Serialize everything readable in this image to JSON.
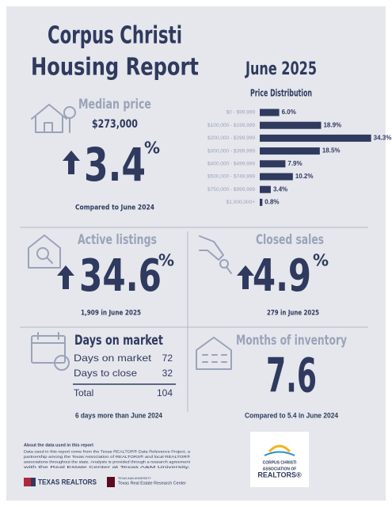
{
  "header": {
    "title_line1": "Corpus Christi",
    "title_line2": "Housing Report",
    "period": "June 2025"
  },
  "price_distribution": {
    "title": "Price Distribution",
    "categories": [
      "$0 - $99,999",
      "$100,000 - $199,999",
      "$200,000 - $299,999",
      "$300,000 - $399,999",
      "$400,000 - $499,999",
      "$500,000 - $749,999",
      "$750,000 - $999,999",
      "$1,000,000+"
    ],
    "values": [
      6.0,
      18.9,
      34.3,
      18.5,
      7.9,
      10.2,
      3.4,
      0.8
    ],
    "value_labels": [
      "6.0%",
      "18.9%",
      "34.3%",
      "18.5%",
      "7.9%",
      "10.2%",
      "3.4%",
      "0.8%"
    ],
    "color": "#2f3a5e"
  },
  "median_price": {
    "title": "Median price",
    "price": "$273,000",
    "change": "3.4",
    "unit": "%",
    "note": "Compared to June 2024"
  },
  "active_listings": {
    "title": "Active listings",
    "change": "34.6",
    "unit": "%",
    "note": "1,909 in June 2025"
  },
  "closed_sales": {
    "title": "Closed sales",
    "change": "4.9",
    "unit": "%",
    "note": "279 in June 2025"
  },
  "days_on_market": {
    "title": "Days on market",
    "rows": [
      [
        "Days on market",
        72
      ],
      [
        "Days to close",
        32
      ]
    ],
    "total": [
      "Total",
      104
    ],
    "note": "6 days more than June 2024"
  },
  "months_of_inventory": {
    "title": "Months of inventory",
    "value": "7.6",
    "note": "Compared to 5.4 in June 2024"
  },
  "about": {
    "title": "About the data used in this report",
    "lines": [
      "Data used in this report come from the Texas REALTOR® Data Relevance Project, a",
      "partnership among the Texas Association of REALTORS® and local REALTOR®",
      "associations throughout the state. Analysis is provided through a research agreement",
      "with the Real Estate Center at Texas A&M University."
    ]
  },
  "logos": {
    "texas_realtors": "TEXAS REALTORS",
    "university": "TEXAS A&M UNIVERSITY",
    "center": "Texas Real Estate Research Center",
    "association": [
      "CORPUS CHRISTI",
      "ASSOCIATION OF",
      "REALTORS®"
    ]
  }
}
